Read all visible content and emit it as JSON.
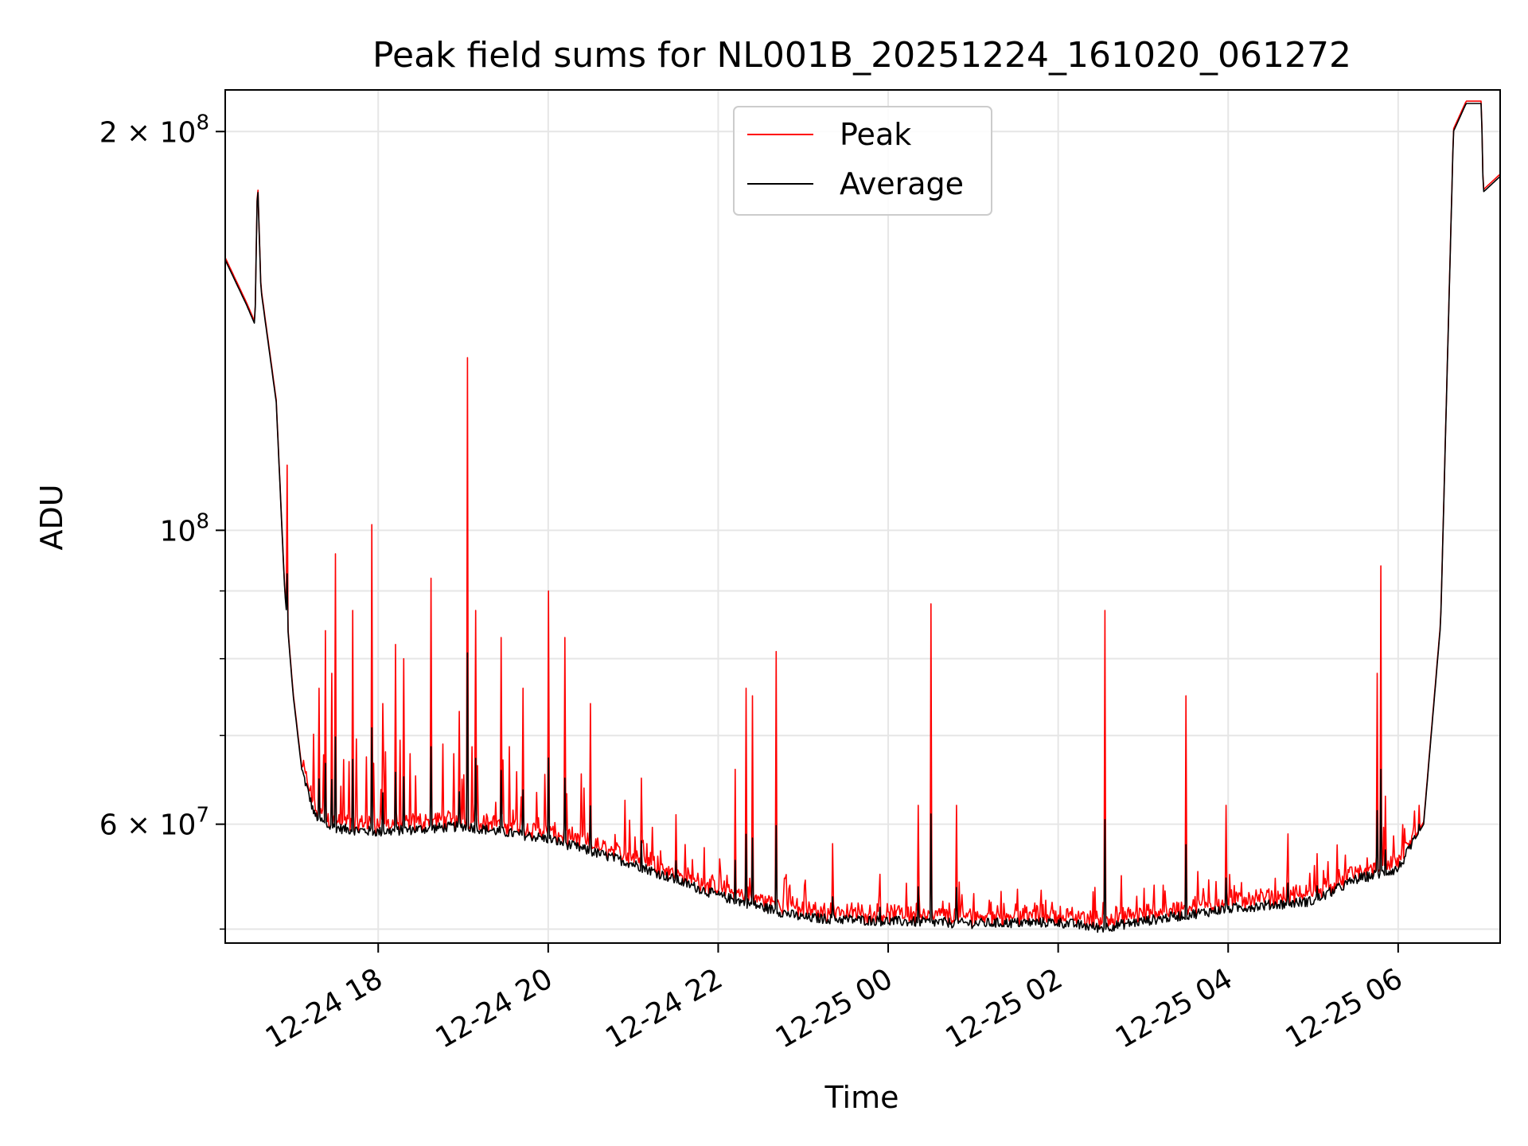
{
  "chart_data": {
    "type": "line",
    "title": "Peak field sums for NL001B_20251224_161020_061272",
    "xlabel": "Time",
    "ylabel": "ADU",
    "yscale": "log",
    "xlim": [
      16.2,
      31.2
    ],
    "ylim": [
      48800000,
      215000000
    ],
    "grid": true,
    "legend_position": "upper center",
    "x_unit": "hours since 2025-12-24 00:00",
    "x_ticks": [
      {
        "value": 18,
        "label": "12-24 18"
      },
      {
        "value": 20,
        "label": "12-24 20"
      },
      {
        "value": 22,
        "label": "12-24 22"
      },
      {
        "value": 24,
        "label": "12-25 00"
      },
      {
        "value": 26,
        "label": "12-25 02"
      },
      {
        "value": 28,
        "label": "12-25 04"
      },
      {
        "value": 30,
        "label": "12-25 06"
      }
    ],
    "y_major_ticks": [
      {
        "value": 60000000,
        "base": "6",
        "exp": "7"
      },
      {
        "value": 100000000,
        "base": "",
        "exp": "8"
      },
      {
        "value": 200000000,
        "base": "2",
        "exp": "8"
      }
    ],
    "y_minor_ticks": [
      50000000,
      70000000,
      80000000,
      90000000
    ],
    "series": [
      {
        "name": "Peak",
        "color": "#ff0000"
      },
      {
        "name": "Average",
        "color": "#000000"
      }
    ],
    "baseline": {
      "x": [
        16.2,
        16.45,
        16.55,
        16.58,
        16.62,
        16.8,
        16.9,
        17.0,
        17.1,
        17.25,
        17.4,
        17.6,
        18.0,
        19.0,
        20.0,
        21.0,
        22.0,
        23.0,
        24.0,
        25.0,
        26.0,
        26.5,
        27.0,
        28.0,
        29.0,
        29.5,
        30.0,
        30.3,
        30.5,
        30.65,
        30.8,
        30.98,
        31.0,
        31.2
      ],
      "y": [
        160000000,
        148000000,
        143000000,
        185000000,
        152000000,
        125000000,
        90000000,
        75000000,
        66000000,
        61000000,
        59800000,
        59500000,
        59200000,
        59800000,
        58500000,
        56000000,
        53000000,
        51000000,
        50700000,
        50500000,
        50600000,
        50100000,
        50700000,
        51800000,
        52500000,
        54500000,
        55500000,
        60000000,
        85000000,
        200000000,
        210000000,
        210000000,
        180000000,
        185000000
      ]
    },
    "peak_spikes": [
      {
        "x": 16.93,
        "y": 112000000
      },
      {
        "x": 17.3,
        "y": 76000000
      },
      {
        "x": 17.38,
        "y": 84000000
      },
      {
        "x": 17.45,
        "y": 78000000
      },
      {
        "x": 17.5,
        "y": 96000000
      },
      {
        "x": 17.7,
        "y": 87000000
      },
      {
        "x": 17.92,
        "y": 101000000
      },
      {
        "x": 18.05,
        "y": 74000000
      },
      {
        "x": 18.2,
        "y": 82000000
      },
      {
        "x": 18.3,
        "y": 80000000
      },
      {
        "x": 18.62,
        "y": 92000000
      },
      {
        "x": 18.95,
        "y": 73000000
      },
      {
        "x": 19.05,
        "y": 135000000
      },
      {
        "x": 19.15,
        "y": 87000000
      },
      {
        "x": 19.45,
        "y": 83000000
      },
      {
        "x": 19.7,
        "y": 76000000
      },
      {
        "x": 20.0,
        "y": 90000000
      },
      {
        "x": 20.2,
        "y": 83000000
      },
      {
        "x": 20.5,
        "y": 74000000
      },
      {
        "x": 21.1,
        "y": 65000000
      },
      {
        "x": 21.5,
        "y": 61000000
      },
      {
        "x": 22.2,
        "y": 66000000
      },
      {
        "x": 22.33,
        "y": 76000000
      },
      {
        "x": 22.4,
        "y": 75000000
      },
      {
        "x": 22.68,
        "y": 81000000
      },
      {
        "x": 23.35,
        "y": 58000000
      },
      {
        "x": 23.9,
        "y": 55000000
      },
      {
        "x": 24.35,
        "y": 62000000
      },
      {
        "x": 24.5,
        "y": 88000000
      },
      {
        "x": 24.8,
        "y": 62000000
      },
      {
        "x": 26.55,
        "y": 87000000
      },
      {
        "x": 27.5,
        "y": 75000000
      },
      {
        "x": 27.98,
        "y": 62000000
      },
      {
        "x": 28.7,
        "y": 59000000
      },
      {
        "x": 29.05,
        "y": 57000000
      },
      {
        "x": 29.75,
        "y": 78000000
      },
      {
        "x": 29.8,
        "y": 94000000
      },
      {
        "x": 29.85,
        "y": 63000000
      },
      {
        "x": 30.25,
        "y": 62000000
      }
    ]
  }
}
